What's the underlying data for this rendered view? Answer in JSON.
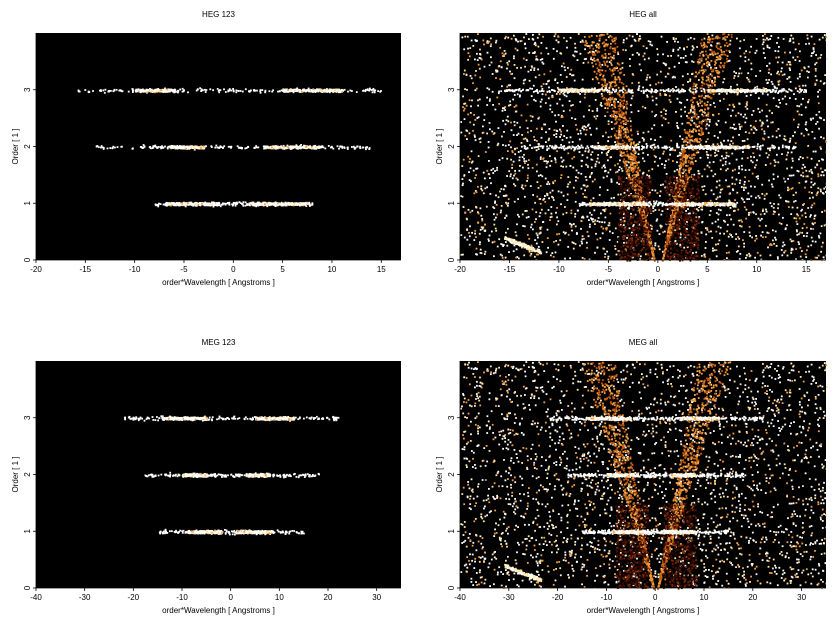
{
  "figure": {
    "background": "#ffffff",
    "plot_background": "#000000",
    "colormap": [
      "#3a0a00",
      "#7a2500",
      "#c25a10",
      "#f2a040",
      "#ffe7a8",
      "#ffffff"
    ]
  },
  "chart_data": [
    {
      "type": "heatmap",
      "title": "HEG 123",
      "xlabel": "order*Wavelength [ Angstroms ]",
      "ylabel": "Order [ 1 ]",
      "xlim": [
        -20,
        17
      ],
      "ylim": [
        0,
        4
      ],
      "xticks": [
        -20,
        -15,
        -10,
        -5,
        0,
        5,
        10,
        15
      ],
      "yticks": [
        0,
        1,
        2,
        3
      ],
      "grid": false,
      "bands": [
        {
          "order": 1,
          "x_range": [
            -8,
            8
          ],
          "bright_segments": [
            [
              -7,
              -1.5
            ],
            [
              1.5,
              7.5
            ]
          ]
        },
        {
          "order": 2,
          "x_range": [
            -14,
            14
          ],
          "bright_segments": [
            [
              -6.5,
              -3
            ],
            [
              3,
              9
            ]
          ]
        },
        {
          "order": 3,
          "x_range": [
            -16,
            15
          ],
          "bright_segments": [
            [
              -10,
              -6
            ],
            [
              5,
              11
            ]
          ]
        }
      ]
    },
    {
      "type": "heatmap",
      "title": "HEG all",
      "xlabel": "order*Wavelength [ Angstroms ]",
      "ylabel": "Order [ 1 ]",
      "xlim": [
        -20,
        17
      ],
      "ylim": [
        0,
        4
      ],
      "xticks": [
        -20,
        -15,
        -10,
        -5,
        0,
        5,
        10,
        15
      ],
      "yticks": [
        0,
        1,
        2,
        3
      ],
      "grid": false,
      "bands": [
        {
          "order": 1,
          "x_range": [
            -8,
            8
          ],
          "bright_segments": [
            [
              -7,
              -1.5
            ],
            [
              1.5,
              7.5
            ]
          ]
        },
        {
          "order": 2,
          "x_range": [
            -14,
            14
          ],
          "bright_segments": [
            [
              -6.5,
              -3
            ],
            [
              3,
              9
            ]
          ]
        },
        {
          "order": 3,
          "x_range": [
            -16,
            15
          ],
          "bright_segments": [
            [
              -10,
              -6
            ],
            [
              5,
              11
            ]
          ]
        }
      ]
    },
    {
      "type": "heatmap",
      "title": "MEG 123",
      "xlabel": "order*Wavelength [ Angstroms ]",
      "ylabel": "Order [ 1 ]",
      "xlim": [
        -40,
        35
      ],
      "ylim": [
        0,
        4
      ],
      "xticks": [
        -40,
        -30,
        -20,
        -10,
        0,
        10,
        20,
        30
      ],
      "yticks": [
        0,
        1,
        2,
        3
      ],
      "grid": false,
      "bands": [
        {
          "order": 1,
          "x_range": [
            -15,
            15
          ],
          "bright_segments": [
            [
              -9,
              -2
            ],
            [
              1,
              8
            ]
          ]
        },
        {
          "order": 2,
          "x_range": [
            -18,
            18
          ],
          "bright_segments": [
            [
              -10,
              -5
            ],
            [
              3,
              8
            ]
          ]
        },
        {
          "order": 3,
          "x_range": [
            -22,
            22
          ],
          "bright_segments": [
            [
              -14,
              -5
            ],
            [
              5,
              13
            ]
          ]
        }
      ]
    },
    {
      "type": "heatmap",
      "title": "MEG all",
      "xlabel": "order*Wavelength [ Angstroms ]",
      "ylabel": "Order [ 1 ]",
      "xlim": [
        -40,
        35
      ],
      "ylim": [
        0,
        4
      ],
      "xticks": [
        -40,
        -30,
        -20,
        -10,
        0,
        10,
        20,
        30
      ],
      "yticks": [
        0,
        1,
        2,
        3
      ],
      "grid": false,
      "bands": [
        {
          "order": 1,
          "x_range": [
            -15,
            15
          ],
          "bright_segments": [
            [
              -9,
              -2
            ],
            [
              1,
              8
            ]
          ]
        },
        {
          "order": 2,
          "x_range": [
            -18,
            18
          ],
          "bright_segments": [
            [
              -10,
              -5
            ],
            [
              3,
              8
            ]
          ]
        },
        {
          "order": 3,
          "x_range": [
            -22,
            22
          ],
          "bright_segments": [
            [
              -14,
              -5
            ],
            [
              5,
              13
            ]
          ]
        }
      ]
    }
  ]
}
